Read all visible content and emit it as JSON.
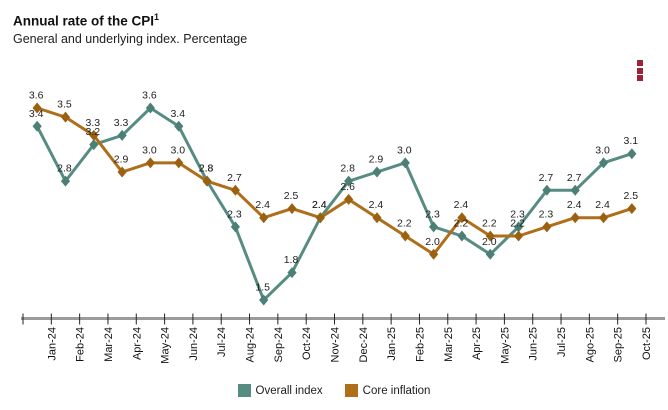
{
  "header": {
    "title": "Annual rate of the CPI",
    "title_superscript": "1",
    "subtitle": "General and underlying index. Percentage"
  },
  "menu_icon": {
    "name": "kebab-menu-icon",
    "color": "#9e2136"
  },
  "chart_data": {
    "type": "line",
    "title": "Annual rate of the CPI",
    "subtitle": "General and underlying index. Percentage",
    "categories": [
      "Jan-24",
      "Feb-24",
      "Mar-24",
      "Apr-24",
      "May-24",
      "Jun-24",
      "Jul-24",
      "Aug-24",
      "Sep-24",
      "Oct-24",
      "Nov-24",
      "Dec-24",
      "Jan-25",
      "Feb-25",
      "Mar-25",
      "Apr-25",
      "May-25",
      "Jun-25",
      "Jul-25",
      "Ago-25",
      "Sep-25",
      "Oct-25"
    ],
    "series": [
      {
        "name": "Overall index",
        "color": "#578c82",
        "marker_color": "#4c8076",
        "values": [
          3.4,
          2.8,
          3.2,
          3.3,
          3.6,
          3.4,
          2.8,
          2.3,
          1.5,
          1.8,
          2.4,
          2.8,
          2.9,
          3.0,
          2.3,
          2.2,
          2.0,
          2.3,
          2.7,
          2.7,
          3.0,
          3.1
        ]
      },
      {
        "name": "Core inflation",
        "color": "#ae6e1a",
        "marker_color": "#9c6110",
        "values": [
          3.6,
          3.5,
          3.3,
          2.9,
          3.0,
          3.0,
          2.8,
          2.7,
          2.4,
          2.5,
          2.4,
          2.6,
          2.4,
          2.2,
          2.0,
          2.4,
          2.2,
          2.2,
          2.3,
          2.4,
          2.4,
          2.5
        ]
      }
    ],
    "xlabel": "",
    "ylabel": "",
    "ylim": [
      1.2,
      3.8
    ],
    "grid": false,
    "y_axis_labels_visible": false,
    "marker": "diamond",
    "data_labels": true,
    "data_label_decimals": 1,
    "legend_position": "bottom",
    "axis_color": "#9b9b9b",
    "tick_color": "#222222",
    "label_color": "#1f1f1f"
  }
}
